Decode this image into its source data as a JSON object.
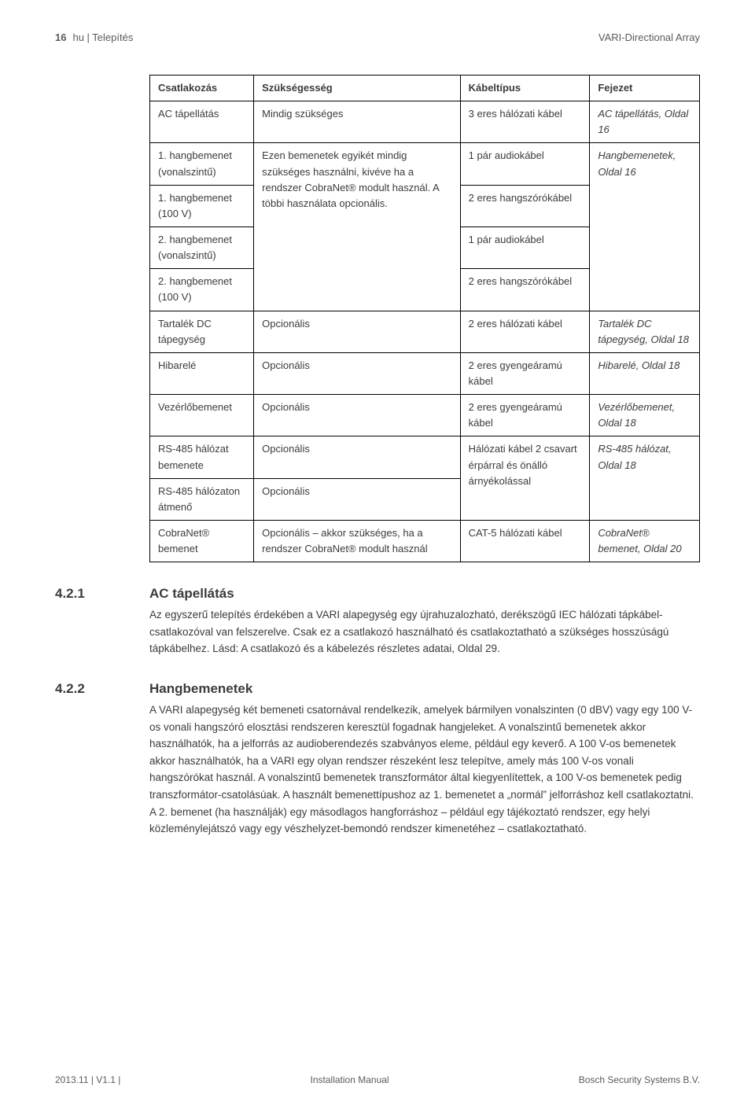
{
  "header": {
    "page_number": "16",
    "lang_section": "hu | Telepítés",
    "doc_title": "VARI-Directional Array"
  },
  "table": {
    "headers": [
      "Csatlakozás",
      "Szükségesség",
      "Kábeltípus",
      "Fejezet"
    ],
    "rows": {
      "ac": {
        "c1": "AC tápellátás",
        "c2": "Mindig szükséges",
        "c3": "3 eres hálózati kábel",
        "c4": "AC tápellátás, Oldal 16"
      },
      "in1l": {
        "c1": "1. hangbemenet (vonalszintű)",
        "c3": "1 pár audiokábel"
      },
      "in1h": {
        "c1": "1. hangbemenet (100 V)",
        "c3": "2 eres hangszórókábel"
      },
      "in2l": {
        "c1": "2. hangbemenet (vonalszintű)",
        "c3": "1 pár audiokábel"
      },
      "in2h": {
        "c1": "2. hangbemenet (100 V)",
        "c3": "2 eres hangszórókábel"
      },
      "in_c2": "Ezen bemenetek egyikét mindig szükséges használni, kivéve ha a rendszer CobraNet® modult használ. A többi használata opcionális.",
      "in_c4": "Hangbemenetek, Oldal 16",
      "dc": {
        "c1": "Tartalék DC tápegység",
        "c2": "Opcionális",
        "c3": "2 eres hálózati kábel",
        "c4": "Tartalék DC tápegység, Oldal 18"
      },
      "fail": {
        "c1": "Hibarelé",
        "c2": "Opcionális",
        "c3": "2 eres gyengeáramú kábel",
        "c4": "Hibarelé, Oldal 18"
      },
      "ctrl": {
        "c1": "Vezérlőbemenet",
        "c2": "Opcionális",
        "c3": "2 eres gyengeáramú kábel",
        "c4": "Vezérlőbemenet, Oldal 18"
      },
      "rs485a": {
        "c1": "RS-485 hálózat bemenete",
        "c2": "Opcionális"
      },
      "rs485b": {
        "c1": "RS-485 hálózaton átmenő",
        "c2": "Opcionális"
      },
      "rs485_c3": "Hálózati kábel 2 csavart érpárral és önálló árnyékolással",
      "rs485_c4": "RS-485 hálózat, Oldal 18",
      "cobra": {
        "c1": "CobraNet® bemenet",
        "c2": "Opcionális – akkor szükséges, ha a rendszer CobraNet® modult használ",
        "c3": "CAT-5 hálózati kábel",
        "c4": "CobraNet® bemenet, Oldal 20"
      }
    }
  },
  "sections": {
    "s1": {
      "num": "4.2.1",
      "title": "AC tápellátás",
      "body": "Az egyszerű telepítés érdekében a VARI alapegység egy újrahuzalozható, derékszögű IEC hálózati tápkábel-csatlakozóval van felszerelve. Csak ez a csatlakozó használható és csatlakoztatható a szükséges hosszúságú tápkábelhez. Lásd: A csatlakozó és a kábelezés részletes adatai, Oldal 29."
    },
    "s2": {
      "num": "4.2.2",
      "title": "Hangbemenetek",
      "body": "A VARI alapegység két bemeneti csatornával rendelkezik, amelyek bármilyen vonalszinten (0 dBV) vagy egy 100 V-os vonali hangszóró elosztási rendszeren keresztül fogadnak hangjeleket. A vonalszintű bemenetek akkor használhatók, ha a jelforrás az audioberendezés szabványos eleme, például egy keverő. A 100 V-os bemenetek akkor használhatók, ha a VARI egy olyan rendszer részeként lesz telepítve, amely más 100 V-os vonali hangszórókat használ. A vonalszintű bemenetek transzformátor által kiegyenlítettek, a 100 V-os bemenetek pedig transzformátor-csatolásúak. A használt bemenettípushoz az 1. bemenetet a „normál” jelforráshoz kell csatlakoztatni. A 2. bemenet (ha használják) egy másodlagos hangforráshoz – például egy tájékoztató rendszer, egy helyi közleménylejátszó vagy egy vészhelyzet-bemondó rendszer kimenetéhez – csatlakoztatható."
    }
  },
  "footer": {
    "left": "2013.11 | V1.1 |",
    "center": "Installation Manual",
    "right": "Bosch Security Systems B.V."
  }
}
